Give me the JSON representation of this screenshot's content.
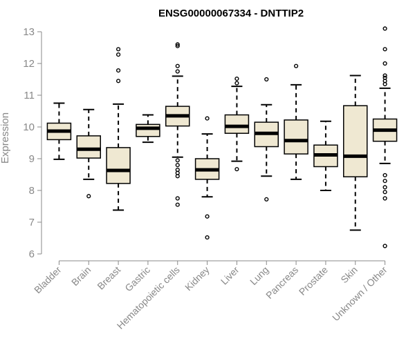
{
  "chart_data": {
    "type": "boxplot",
    "title": "ENSG00000067334 - DNTTIP2",
    "xlabel": "",
    "ylabel": "Expression",
    "ylim": [
      6,
      13.2
    ],
    "yticks": [
      6,
      7,
      8,
      9,
      10,
      11,
      12,
      13
    ],
    "grid": false,
    "legend": "none",
    "colors": {
      "box_fill": "#efe8d2",
      "box_stroke": "#000000",
      "median": "#000000",
      "axis": "#888888"
    },
    "categories": [
      "Bladder",
      "Brain",
      "Breast",
      "Gastric",
      "Hematopoietic cells",
      "Kidney",
      "Liver",
      "Lung",
      "Pancreas",
      "Prostate",
      "Skin",
      "Unknown / Other"
    ],
    "boxes": [
      {
        "label": "Bladder",
        "whisker_low": 8.98,
        "q1": 9.6,
        "median": 9.87,
        "q3": 10.12,
        "whisker_high": 10.75,
        "outliers": []
      },
      {
        "label": "Brain",
        "whisker_low": 8.35,
        "q1": 9.02,
        "median": 9.3,
        "q3": 9.72,
        "whisker_high": 10.55,
        "outliers": [
          7.82
        ]
      },
      {
        "label": "Breast",
        "whisker_low": 7.38,
        "q1": 8.22,
        "median": 8.63,
        "q3": 9.35,
        "whisker_high": 10.72,
        "outliers": [
          11.45,
          11.78,
          12.28,
          12.45
        ]
      },
      {
        "label": "Gastric",
        "whisker_low": 9.52,
        "q1": 9.7,
        "median": 9.96,
        "q3": 10.08,
        "whisker_high": 10.38,
        "outliers": []
      },
      {
        "label": "Hematopoietic cells",
        "whisker_low": 9.05,
        "q1": 10.03,
        "median": 10.35,
        "q3": 10.65,
        "whisker_high": 11.6,
        "outliers": [
          7.55,
          7.75,
          8.45,
          8.55,
          8.65,
          8.8,
          8.95,
          11.75,
          11.92,
          12.55,
          12.6
        ]
      },
      {
        "label": "Kidney",
        "whisker_low": 7.8,
        "q1": 8.35,
        "median": 8.65,
        "q3": 9.0,
        "whisker_high": 9.78,
        "outliers": [
          6.52,
          7.18,
          10.27
        ]
      },
      {
        "label": "Liver",
        "whisker_low": 8.92,
        "q1": 9.8,
        "median": 10.02,
        "q3": 10.38,
        "whisker_high": 11.28,
        "outliers": [
          8.67,
          11.38,
          11.52
        ]
      },
      {
        "label": "Lung",
        "whisker_low": 8.45,
        "q1": 9.38,
        "median": 9.8,
        "q3": 10.15,
        "whisker_high": 10.7,
        "outliers": [
          7.72,
          11.5
        ]
      },
      {
        "label": "Pancreas",
        "whisker_low": 8.35,
        "q1": 9.15,
        "median": 9.57,
        "q3": 10.22,
        "whisker_high": 11.33,
        "outliers": [
          11.92
        ]
      },
      {
        "label": "Prostate",
        "whisker_low": 8.0,
        "q1": 8.75,
        "median": 9.12,
        "q3": 9.43,
        "whisker_high": 10.18,
        "outliers": []
      },
      {
        "label": "Skin",
        "whisker_low": 6.75,
        "q1": 8.43,
        "median": 9.08,
        "q3": 10.67,
        "whisker_high": 11.62,
        "outliers": []
      },
      {
        "label": "Unknown / Other",
        "whisker_low": 8.85,
        "q1": 9.55,
        "median": 9.9,
        "q3": 10.25,
        "whisker_high": 11.22,
        "outliers": [
          6.25,
          7.75,
          7.95,
          8.1,
          8.3,
          8.48,
          11.35,
          11.45,
          11.55,
          11.62,
          12.0,
          12.45,
          13.1
        ]
      }
    ]
  }
}
